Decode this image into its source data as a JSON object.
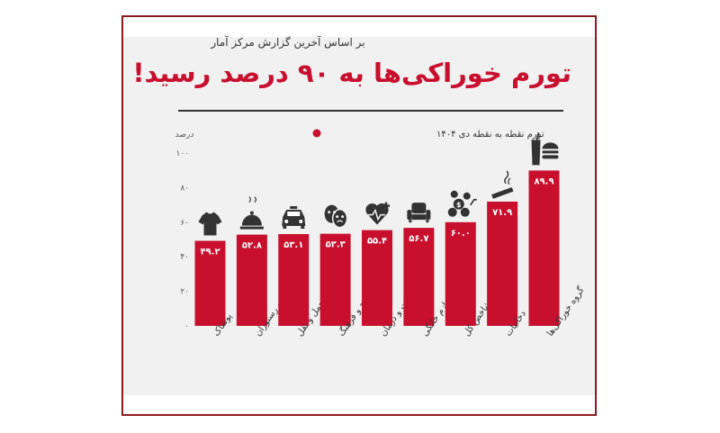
{
  "subtitle": "بر اساس آخرین گزارش مرکز آمار",
  "title": "تورم خوراکی‌ها به ۹۰ درصد رسید!",
  "colors": {
    "bar": "#c8102e",
    "frame": "#8b1a1f",
    "title": "#c8102e",
    "icon": "#333333"
  },
  "chart_data": {
    "type": "bar",
    "ylabel": "درصد",
    "ylim": [
      0,
      100
    ],
    "yticks": [
      0,
      20,
      40,
      60,
      80,
      100
    ],
    "ytick_labels": [
      "۰",
      "۲۰",
      "۴۰",
      "۶۰",
      "۸۰",
      "۱۰۰"
    ],
    "grid": false,
    "legend_position": "top-right",
    "series": [
      {
        "name": "تورم نقطه به نقطه دی ۱۴۰۴",
        "color": "#c8102e",
        "values": [
          49.2,
          52.8,
          53.1,
          53.3,
          55.4,
          56.7,
          60.0,
          71.9,
          89.9
        ]
      }
    ],
    "categories": [
      "پوشاک",
      "هتل و رستوران",
      "حمل و نقل",
      "تفریح و فرهنگ",
      "بهداشت و درمان",
      "لوازم خانگی",
      "شاخص کل",
      "دخانیات",
      "گروه خوراکی‌ها"
    ],
    "value_labels": [
      "۴۹.۲",
      "۵۲.۸",
      "۵۳.۱",
      "۵۳.۳",
      "۵۵.۴",
      "۵۶.۷",
      "۶۰.۰",
      "۷۱.۹",
      "۸۹.۹"
    ],
    "icons": [
      "tshirt-icon",
      "food-cloche-icon",
      "taxi-icon",
      "theater-masks-icon",
      "heart-health-icon",
      "armchair-icon",
      "economy-coins-icon",
      "cigarette-icon",
      "fast-food-icon"
    ]
  }
}
